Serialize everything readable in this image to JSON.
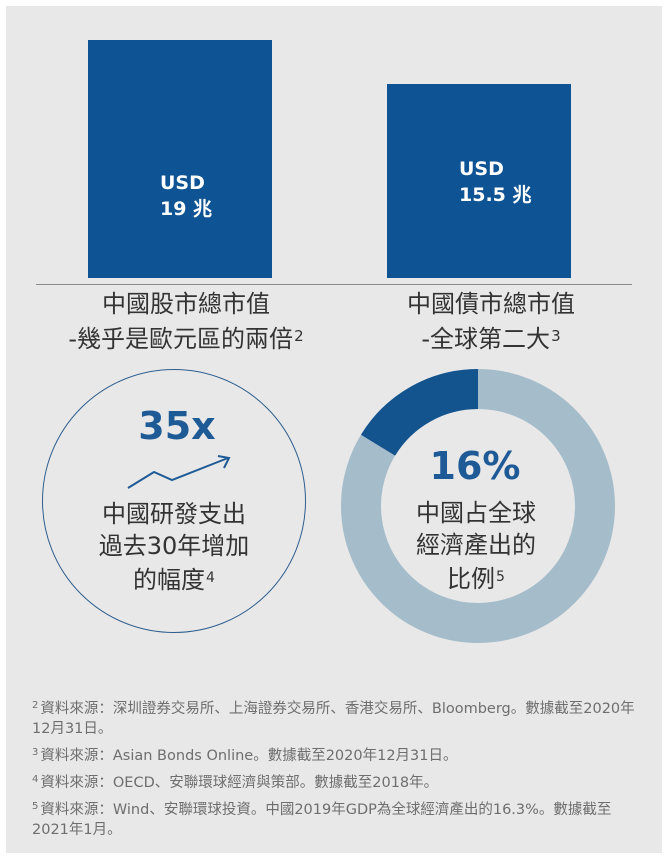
{
  "chart_data": {
    "type": "bar",
    "categories": [
      "中國股市總市值",
      "中國債市總市值"
    ],
    "values": [
      19,
      15.5
    ],
    "units": "USD 兆",
    "bar_labels": [
      {
        "line1": "USD",
        "line2": "19 兆"
      },
      {
        "line1": "USD",
        "line2": "15.5 兆"
      }
    ],
    "captions": [
      {
        "line1": "中國股市總市值",
        "line2": "-幾乎是歐元區的兩倍",
        "sup": "2"
      },
      {
        "line1": "中國債市總市值",
        "line2": "-全球第二大",
        "sup": "3"
      }
    ],
    "color": "#0e5393"
  },
  "rd": {
    "value": "35x",
    "lines": [
      "中國研發支出",
      "過去30年增加",
      "的幅度"
    ],
    "sup": "4"
  },
  "share": {
    "value": "16%",
    "fraction": 0.163,
    "lines": [
      "中國占全球",
      "經濟產出的",
      "比例"
    ],
    "sup": "5",
    "colors": {
      "highlight": "#13548f",
      "rest": "#a5bccb"
    }
  },
  "notes": [
    {
      "num": "2",
      "text": "資料來源：深圳證券交易所、上海證券交易所、香港交易所、Bloomberg。數據截至2020年12月31日。"
    },
    {
      "num": "3",
      "text": "資料來源：Asian Bonds Online。數據截至2020年12月31日。"
    },
    {
      "num": "4",
      "text": "資料來源：OECD、安聯環球經濟與策部。數據截至2018年。"
    },
    {
      "num": "5",
      "text": "資料來源：Wind、安聯環球投資。中國2019年GDP為全球經濟產出的16.3%。數據截至2021年1月。"
    }
  ]
}
